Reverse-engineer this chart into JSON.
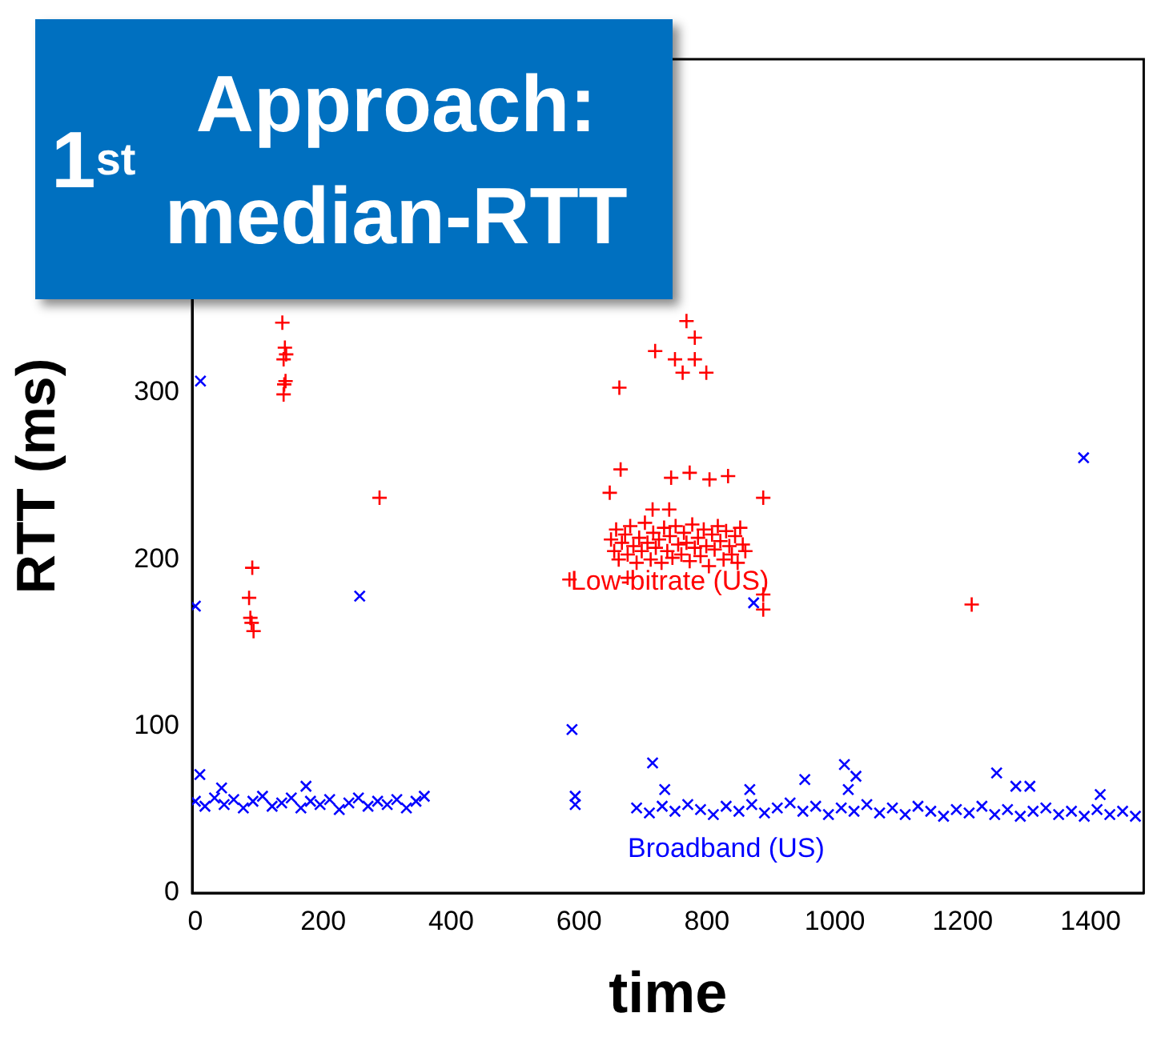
{
  "chart_data": {
    "type": "scatter",
    "title": "1$^{st}$ Approach: median-RTT",
    "xlabel": "time",
    "ylabel": "RTT (ms)",
    "xlim": [
      -5,
      1483
    ],
    "xticks": [
      0,
      200,
      400,
      600,
      800,
      1000,
      1200,
      1400
    ],
    "ylim": [
      0,
      500
    ],
    "yticks": [
      0,
      100,
      200,
      300
    ],
    "series": [
      {
        "name": "Low-bitrate (US)",
        "color": "#ff0000",
        "marker": "cross",
        "x": [
          89,
          84,
          86,
          88,
          91,
          136,
          140,
          142,
          138,
          141,
          139,
          138,
          288,
          585,
          648,
          665,
          663,
          715,
          741,
          719,
          744,
          750,
          762,
          768,
          773,
          781,
          781,
          799,
          804,
          833,
          888,
          676,
          888,
          888,
          1214,
          650,
          655,
          658,
          662,
          667,
          672,
          676,
          680,
          685,
          690,
          694,
          698,
          703,
          707,
          712,
          716,
          720,
          725,
          729,
          733,
          738,
          742,
          746,
          751,
          755,
          760,
          764,
          768,
          773,
          777,
          781,
          786,
          790,
          795,
          799,
          803,
          808,
          812,
          817,
          821,
          826,
          830,
          835,
          839,
          844,
          848,
          852,
          856,
          860
        ],
        "values": [
          195,
          177,
          165,
          162,
          157,
          342,
          327,
          323,
          320,
          307,
          305,
          299,
          237,
          188,
          240,
          254,
          303,
          230,
          230,
          325,
          249,
          320,
          312,
          343,
          252,
          333,
          320,
          312,
          248,
          250,
          237,
          189,
          179,
          170,
          173,
          212,
          205,
          218,
          200,
          210,
          215,
          203,
          220,
          208,
          198,
          213,
          205,
          222,
          210,
          200,
          216,
          207,
          212,
          198,
          219,
          205,
          214,
          201,
          220,
          209,
          203,
          216,
          210,
          199,
          221,
          207,
          213,
          202,
          218,
          208,
          196,
          215,
          206,
          220,
          211,
          200,
          217,
          208,
          203,
          214,
          198,
          219,
          209,
          205
        ]
      },
      {
        "name": "Broadband (US)",
        "color": "#0000ff",
        "marker": "x",
        "x": [
          0,
          8,
          7,
          41,
          173,
          257,
          1389,
          873,
          589,
          594,
          594,
          715,
          734,
          867,
          953,
          1015,
          1021,
          1033,
          1253,
          1283,
          1305,
          1415,
          0,
          15,
          30,
          45,
          60,
          75,
          90,
          105,
          120,
          135,
          150,
          165,
          180,
          195,
          210,
          225,
          240,
          255,
          270,
          285,
          300,
          315,
          330,
          345,
          358,
          690,
          710,
          730,
          750,
          770,
          790,
          810,
          830,
          850,
          870,
          890,
          910,
          930,
          950,
          970,
          990,
          1010,
          1030,
          1050,
          1070,
          1090,
          1110,
          1130,
          1150,
          1170,
          1190,
          1210,
          1230,
          1250,
          1270,
          1290,
          1310,
          1330,
          1350,
          1370,
          1390,
          1410,
          1430,
          1450,
          1470
        ],
        "values": [
          172,
          307,
          71,
          63,
          64,
          178,
          261,
          174,
          98,
          58,
          53,
          78,
          62,
          62,
          68,
          77,
          62,
          70,
          72,
          64,
          64,
          59,
          55,
          52,
          57,
          53,
          56,
          51,
          55,
          58,
          52,
          54,
          57,
          51,
          55,
          53,
          56,
          50,
          54,
          57,
          52,
          55,
          53,
          56,
          51,
          55,
          58,
          51,
          48,
          52,
          49,
          53,
          50,
          47,
          52,
          49,
          53,
          48,
          51,
          54,
          49,
          52,
          47,
          51,
          49,
          53,
          48,
          51,
          47,
          52,
          49,
          46,
          50,
          48,
          52,
          47,
          50,
          46,
          49,
          51,
          47,
          49,
          46,
          50,
          47,
          49,
          46
        ]
      }
    ]
  }
}
